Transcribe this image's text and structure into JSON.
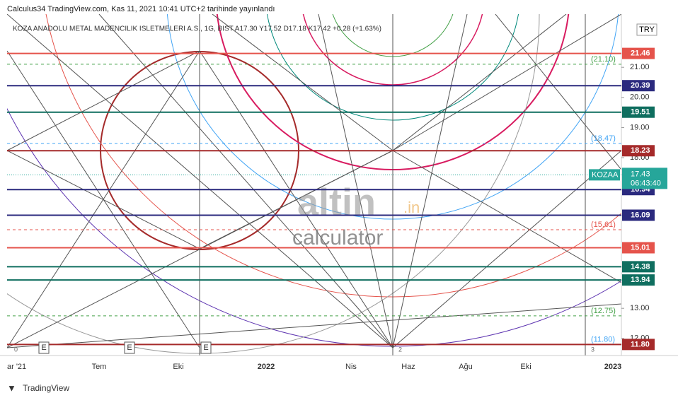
{
  "header": "Calculus34 TradingView.com, Kas 11, 2021 10:41 UTC+2 tarihinde yayınlandı",
  "legend": "KOZA ANADOLU METAL MADENCILIK ISLETMELERI A.S., 1G, BIST  A17.30  Y17.52  D17.18  K17.42  +0.28 (+1.63%)",
  "currency": "TRY",
  "price_scale": {
    "ylim": [
      11.55,
      22.6
    ],
    "ticks": [
      {
        "value": 21,
        "label": "21.00"
      },
      {
        "value": 20,
        "label": "20.00"
      },
      {
        "value": 19,
        "label": "19.00"
      },
      {
        "value": 18,
        "label": "18.00"
      },
      {
        "value": 13,
        "label": "13.00"
      },
      {
        "value": 12,
        "label": "12.00"
      }
    ]
  },
  "levels": [
    {
      "value": 21.46,
      "label": "21.46",
      "color": "#e5534b"
    },
    {
      "value": 20.39,
      "label": "20.39",
      "color": "#2b2a7e"
    },
    {
      "value": 19.51,
      "label": "19.51",
      "color": "#0f6e5f"
    },
    {
      "value": 18.23,
      "label": "18.23",
      "color": "#a52a2a"
    },
    {
      "value": 16.94,
      "label": "16.94",
      "color": "#2b2a7e"
    },
    {
      "value": 16.09,
      "label": "16.09",
      "color": "#2b2a7e"
    },
    {
      "value": 15.01,
      "label": "15.01",
      "color": "#e5534b"
    },
    {
      "value": 14.38,
      "label": "14.38",
      "color": "#0f6e5f"
    },
    {
      "value": 13.94,
      "label": "13.94",
      "color": "#0f6e5f"
    },
    {
      "value": 11.8,
      "label": "11.80",
      "color": "#a52a2a"
    }
  ],
  "dashed_levels": [
    {
      "value": 21.1,
      "label": "(21.10)",
      "color": "#43a047"
    },
    {
      "value": 18.47,
      "label": "(18.47)",
      "color": "#42a5f5"
    },
    {
      "value": 15.61,
      "label": "(15.61)",
      "color": "#e5534b"
    },
    {
      "value": 12.75,
      "label": "(12.75)",
      "color": "#43a047"
    },
    {
      "value": 11.8,
      "label": "(11.80)",
      "color": "#42a5f5"
    }
  ],
  "current": {
    "symbol": "KOZAA",
    "value": 17.43,
    "label": "17.43",
    "countdown": "06:43:40",
    "color": "#26a69a"
  },
  "time_axis": [
    "ar '21",
    "Tem",
    "Eki",
    "2022",
    "Nis",
    "Haz",
    "Ağu",
    "Eki",
    "2023"
  ],
  "events": [
    "E",
    "E",
    "E"
  ],
  "pivots": [
    "0",
    "2",
    "3"
  ],
  "watermark": {
    "brand": "altin",
    "tld": ".in",
    "sub": "calculator"
  },
  "footer": "TradingView"
}
